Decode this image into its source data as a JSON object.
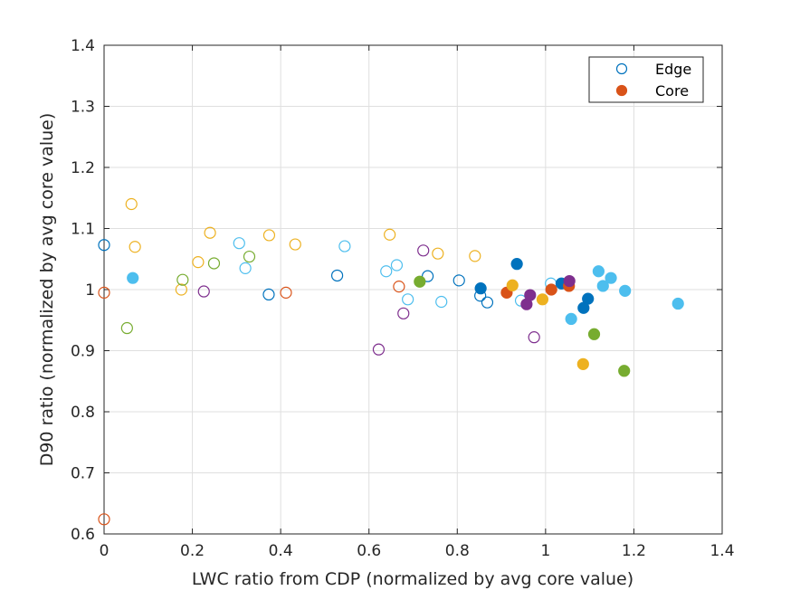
{
  "chart_data": {
    "type": "scatter",
    "xlabel": "LWC ratio from CDP (normalized by avg core value)",
    "ylabel": "D90 ratio (normalized by avg core value)",
    "xlim": [
      0,
      1.4
    ],
    "ylim": [
      0.6,
      1.4
    ],
    "xticks": [
      "0",
      "0.2",
      "0.4",
      "0.6",
      "0.8",
      "1",
      "1.2",
      "1.4"
    ],
    "yticks": [
      "0.6",
      "0.7",
      "0.8",
      "0.9",
      "1",
      "1.1",
      "1.2",
      "1.3",
      "1.4"
    ],
    "grid": true,
    "legend": {
      "placement": "top-right",
      "entries": [
        {
          "label": "Edge",
          "marker": "open-circle",
          "color": "#0072BD"
        },
        {
          "label": "Core",
          "marker": "filled-circle",
          "color": "#D95319"
        }
      ]
    },
    "series": [
      {
        "color": "#0072BD",
        "edge": [
          [
            0.0,
            1.073
          ],
          [
            0.373,
            0.992
          ],
          [
            0.528,
            1.023
          ],
          [
            0.733,
            1.022
          ],
          [
            0.804,
            1.015
          ],
          [
            0.852,
            0.99
          ],
          [
            0.868,
            0.979
          ]
        ],
        "core": [
          [
            0.853,
            1.002
          ],
          [
            0.935,
            1.042
          ],
          [
            1.036,
            1.01
          ],
          [
            1.086,
            0.97
          ],
          [
            1.096,
            0.985
          ]
        ]
      },
      {
        "color": "#D95319",
        "edge": [
          [
            0.0,
            0.624
          ],
          [
            0.0,
            0.995
          ],
          [
            0.412,
            0.995
          ],
          [
            0.668,
            1.005
          ]
        ],
        "core": [
          [
            0.912,
            0.995
          ],
          [
            1.013,
            1.0
          ],
          [
            1.053,
            1.006
          ]
        ]
      },
      {
        "color": "#EDB120",
        "edge": [
          [
            0.062,
            1.14
          ],
          [
            0.07,
            1.07
          ],
          [
            0.175,
            1.0
          ],
          [
            0.213,
            1.045
          ],
          [
            0.24,
            1.093
          ],
          [
            0.374,
            1.089
          ],
          [
            0.433,
            1.074
          ],
          [
            0.647,
            1.09
          ],
          [
            0.756,
            1.059
          ],
          [
            0.84,
            1.055
          ]
        ],
        "core": [
          [
            0.925,
            1.007
          ],
          [
            0.993,
            0.984
          ],
          [
            1.085,
            0.878
          ]
        ]
      },
      {
        "color": "#7E2F8E",
        "edge": [
          [
            0.226,
            0.997
          ],
          [
            0.622,
            0.902
          ],
          [
            0.678,
            0.961
          ],
          [
            0.723,
            1.064
          ],
          [
            0.974,
            0.922
          ]
        ],
        "core": [
          [
            0.957,
            0.976
          ],
          [
            0.965,
            0.991
          ],
          [
            1.054,
            1.014
          ]
        ]
      },
      {
        "color": "#77AC30",
        "edge": [
          [
            0.052,
            0.937
          ],
          [
            0.178,
            1.016
          ],
          [
            0.249,
            1.043
          ],
          [
            0.329,
            1.054
          ]
        ],
        "core": [
          [
            0.715,
            1.013
          ],
          [
            1.11,
            0.927
          ],
          [
            1.178,
            0.867
          ]
        ]
      },
      {
        "color": "#4DBEEE",
        "edge": [
          [
            0.306,
            1.076
          ],
          [
            0.32,
            1.035
          ],
          [
            0.545,
            1.071
          ],
          [
            0.639,
            1.03
          ],
          [
            0.663,
            1.04
          ],
          [
            0.688,
            0.984
          ],
          [
            0.764,
            0.98
          ],
          [
            0.944,
            0.982
          ],
          [
            1.012,
            1.01
          ]
        ],
        "core": [
          [
            0.065,
            1.019
          ],
          [
            1.058,
            0.952
          ],
          [
            1.12,
            1.03
          ],
          [
            1.13,
            1.006
          ],
          [
            1.148,
            1.019
          ],
          [
            1.18,
            0.998
          ],
          [
            1.3,
            0.977
          ]
        ]
      }
    ]
  }
}
